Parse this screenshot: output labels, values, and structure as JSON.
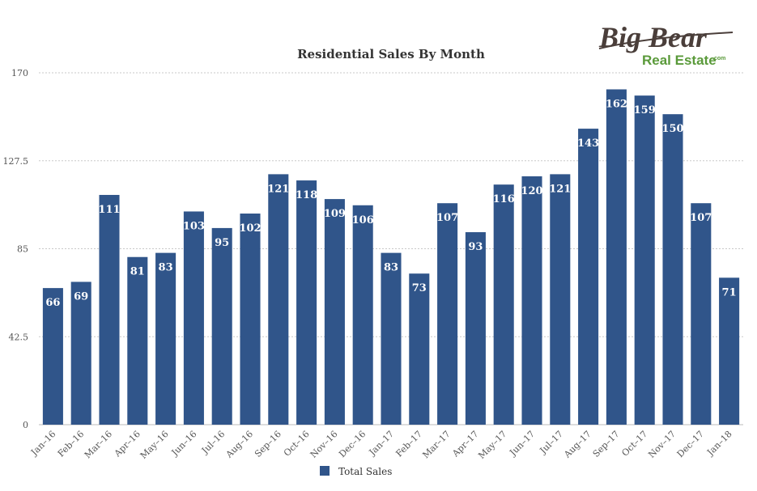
{
  "logo": {
    "line1": "Big Bear",
    "line2": "Real Estate",
    "suffix": ".com"
  },
  "colors": {
    "bar": "#30558a",
    "grid": "#c8c8c8",
    "axis_text": "#555555",
    "title": "#333333",
    "label": "#ffffff",
    "logo_dark": "#4a3e3a",
    "logo_green": "#5a9a3a"
  },
  "chart_data": {
    "type": "bar",
    "title": "Residential Sales By Month",
    "xlabel": "",
    "ylabel": "",
    "ylim": [
      0,
      170
    ],
    "yticks": [
      0,
      42.5,
      85,
      127.5,
      170
    ],
    "ytick_labels": [
      "0",
      "42.5",
      "85",
      "127.5",
      "170"
    ],
    "grid": true,
    "legend_position": "bottom-center",
    "categories": [
      "Jan–16",
      "Feb–16",
      "Mar–16",
      "Apr–16",
      "May–16",
      "Jun–16",
      "Jul–16",
      "Aug–16",
      "Sep–16",
      "Oct–16",
      "Nov–16",
      "Dec–16",
      "Jan–17",
      "Feb–17",
      "Mar–17",
      "Apr–17",
      "May–17",
      "Jun–17",
      "Jul–17",
      "Aug–17",
      "Sep–17",
      "Oct–17",
      "Nov–17",
      "Dec–17",
      "Jan–18"
    ],
    "series": [
      {
        "name": "Total Sales",
        "values": [
          66,
          69,
          111,
          81,
          83,
          103,
          95,
          102,
          121,
          118,
          109,
          106,
          83,
          73,
          107,
          93,
          116,
          120,
          121,
          143,
          162,
          159,
          150,
          107,
          71
        ]
      }
    ]
  }
}
